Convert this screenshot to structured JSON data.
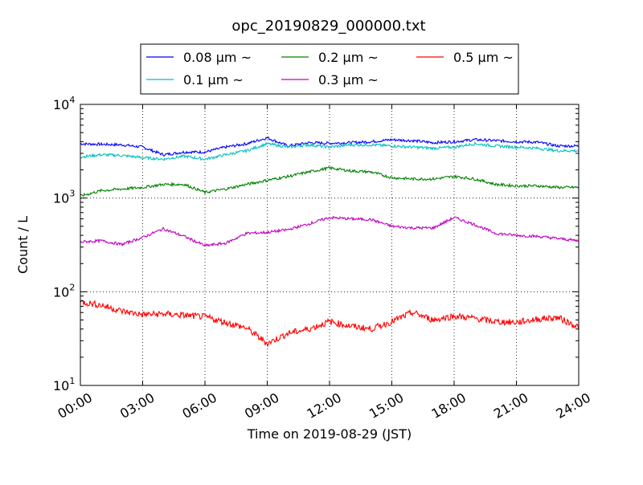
{
  "chart_data": {
    "type": "line",
    "title": "opc_20190829_000000.txt",
    "xlabel": "Time on 2019-08-29 (JST)",
    "ylabel": "Count / L",
    "yscale": "log",
    "ylim": [
      10,
      10000
    ],
    "xlim": [
      "00:00",
      "24:00"
    ],
    "x": [
      "00:00",
      "01:00",
      "02:00",
      "03:00",
      "04:00",
      "05:00",
      "06:00",
      "07:00",
      "08:00",
      "09:00",
      "10:00",
      "11:00",
      "12:00",
      "13:00",
      "14:00",
      "15:00",
      "16:00",
      "17:00",
      "18:00",
      "19:00",
      "20:00",
      "21:00",
      "22:00",
      "23:00",
      "24:00"
    ],
    "x_ticks": [
      "00:00",
      "03:00",
      "06:00",
      "09:00",
      "12:00",
      "15:00",
      "18:00",
      "21:00",
      "24:00"
    ],
    "y_ticks": [
      {
        "value": 10,
        "base": "10",
        "exp": "1"
      },
      {
        "value": 100,
        "base": "10",
        "exp": "2"
      },
      {
        "value": 1000,
        "base": "10",
        "exp": "3"
      },
      {
        "value": 10000,
        "base": "10",
        "exp": "4"
      }
    ],
    "grid": true,
    "legend_position": "top-center",
    "series": [
      {
        "name": "0.08 μm ~",
        "color": "#0000ff",
        "values": [
          3800,
          3750,
          3700,
          3500,
          2900,
          3100,
          3100,
          3500,
          3800,
          4400,
          3600,
          3900,
          3850,
          3900,
          4000,
          4200,
          4100,
          3900,
          4000,
          4200,
          4100,
          4000,
          3950,
          3600,
          3600
        ]
      },
      {
        "name": "0.1 μm ~",
        "color": "#00bfbf",
        "values": [
          2750,
          2900,
          2850,
          2700,
          2600,
          2800,
          2600,
          2900,
          3200,
          3800,
          3500,
          3700,
          3500,
          3700,
          3700,
          3600,
          3500,
          3400,
          3500,
          3800,
          3600,
          3500,
          3400,
          3200,
          3200
        ]
      },
      {
        "name": "0.2 μm ~",
        "color": "#008000",
        "values": [
          1050,
          1200,
          1250,
          1300,
          1400,
          1400,
          1150,
          1250,
          1400,
          1550,
          1700,
          1900,
          2100,
          1950,
          1900,
          1650,
          1600,
          1600,
          1700,
          1600,
          1400,
          1350,
          1350,
          1300,
          1300
        ]
      },
      {
        "name": "0.3 μm ~",
        "color": "#bf00bf",
        "values": [
          340,
          350,
          320,
          380,
          470,
          390,
          310,
          330,
          420,
          430,
          460,
          530,
          620,
          600,
          590,
          500,
          480,
          480,
          620,
          520,
          420,
          400,
          390,
          370,
          350
        ]
      },
      {
        "name": "0.5 μm ~",
        "color": "#ff0000",
        "values": [
          78,
          72,
          62,
          57,
          58,
          56,
          54,
          47,
          41,
          28,
          36,
          40,
          48,
          43,
          40,
          48,
          60,
          50,
          55,
          52,
          48,
          47,
          51,
          53,
          42
        ]
      }
    ]
  }
}
